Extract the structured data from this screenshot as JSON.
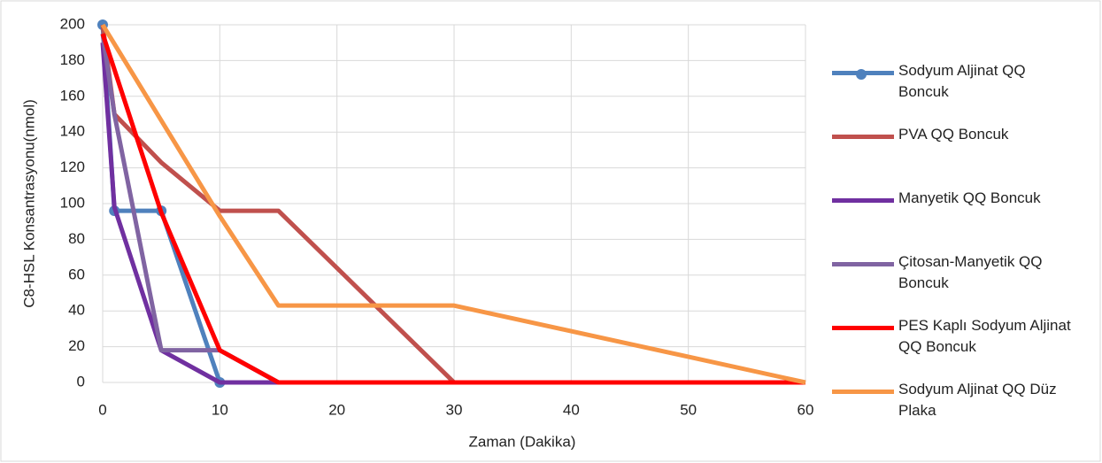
{
  "chart_data": {
    "type": "line",
    "x_label": "Zaman (Dakika)",
    "y_label": "C8-HSL Konsantrasyonu(nmol)",
    "xlim": [
      0,
      60
    ],
    "xticks": [
      0,
      10,
      20,
      30,
      40,
      50,
      60
    ],
    "ylim": [
      0,
      200
    ],
    "yticks": [
      0,
      20,
      40,
      60,
      80,
      100,
      120,
      140,
      160,
      180,
      200
    ],
    "grid": true,
    "legend": "right",
    "series": [
      {
        "name": "Sodyum Aljinat QQ Boncuk",
        "color": "#4f81bd",
        "markers": true,
        "x": [
          0,
          1,
          5,
          10
        ],
        "values": [
          200,
          96,
          96,
          0
        ]
      },
      {
        "name": "PVA QQ Boncuk",
        "color": "#c0504d",
        "x": [
          0,
          1,
          5,
          10,
          15,
          30,
          60
        ],
        "values": [
          200,
          150,
          123,
          96,
          96,
          0,
          0
        ]
      },
      {
        "name": "Manyetik QQ Boncuk",
        "color": "#7030a0",
        "x": [
          0,
          1,
          5,
          10,
          60
        ],
        "values": [
          190,
          98,
          18,
          0,
          0
        ]
      },
      {
        "name": "Çitosan-Manyetik QQ Boncuk",
        "color": "#8064a2",
        "x": [
          0,
          1,
          5,
          10,
          15,
          60
        ],
        "values": [
          195,
          150,
          18,
          18,
          0,
          0
        ]
      },
      {
        "name": "PES Kaplı Sodyum Aljinat QQ Boncuk",
        "color": "#ff0000",
        "x": [
          0,
          5,
          10,
          15,
          60
        ],
        "values": [
          195,
          95,
          18,
          0,
          0
        ]
      },
      {
        "name": "Sodyum Aljinat QQ Düz Plaka",
        "color": "#f79646",
        "x": [
          0,
          10,
          15,
          30,
          60
        ],
        "values": [
          200,
          93,
          43,
          43,
          0
        ]
      }
    ]
  }
}
